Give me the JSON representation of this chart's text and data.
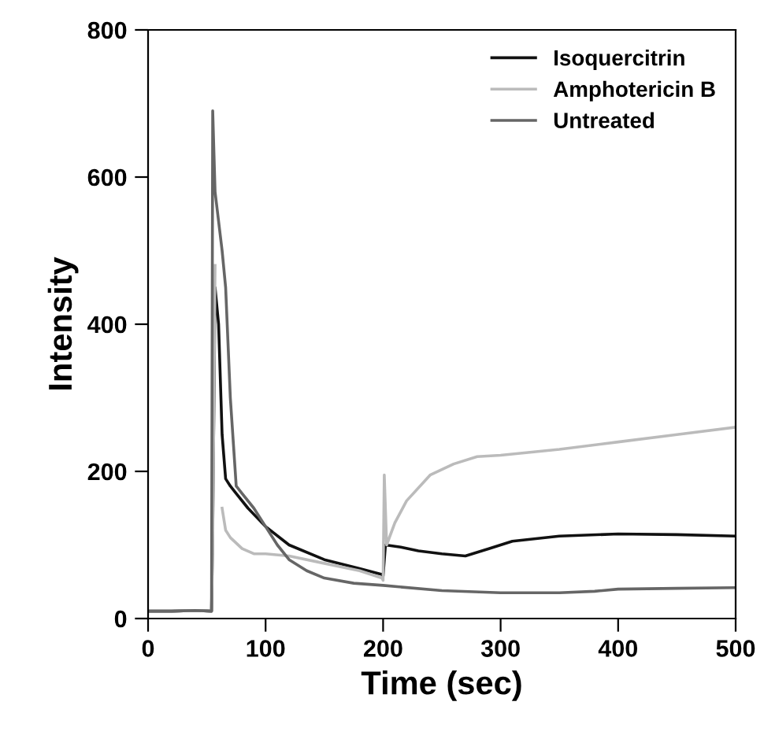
{
  "chart_data": {
    "type": "line",
    "xlabel": "Time (sec)",
    "ylabel": "Intensity",
    "xlim": [
      0,
      500
    ],
    "ylim": [
      0,
      800
    ],
    "xticks": [
      0,
      100,
      200,
      300,
      400,
      500
    ],
    "yticks": [
      0,
      200,
      400,
      600,
      800
    ],
    "grid": false,
    "legend": "top right",
    "marker": "none",
    "line_style": "solid",
    "series": [
      {
        "name": "Isoquercitrin",
        "color": "#111111",
        "x": [
          0,
          20,
          40,
          54,
          55,
          57,
          60,
          63,
          66,
          70,
          75,
          85,
          100,
          120,
          150,
          180,
          199,
          200,
          202,
          215,
          230,
          250,
          270,
          290,
          310,
          350,
          400,
          450,
          500
        ],
        "values": [
          10,
          10,
          11,
          10,
          120,
          450,
          400,
          250,
          190,
          180,
          170,
          150,
          125,
          100,
          80,
          68,
          60,
          58,
          100,
          97,
          92,
          88,
          85,
          95,
          105,
          112,
          115,
          114,
          112
        ]
      },
      {
        "name": "Amphotericin B",
        "color": "#bbbbbb",
        "x": [
          0,
          20,
          40,
          54,
          55,
          57,
          60,
          63,
          66,
          70,
          80,
          90,
          100,
          120,
          150,
          180,
          199,
          200,
          201,
          203,
          210,
          220,
          240,
          260,
          280,
          300,
          350,
          400,
          450,
          500
        ],
        "values": [
          10,
          10,
          11,
          10,
          100,
          480,
          null,
          150,
          120,
          110,
          95,
          88,
          88,
          85,
          75,
          65,
          55,
          52,
          195,
          100,
          130,
          160,
          195,
          210,
          220,
          222,
          230,
          240,
          250,
          260
        ]
      },
      {
        "name": "Untreated",
        "color": "#666666",
        "x": [
          0,
          20,
          40,
          54,
          55,
          57,
          60,
          63,
          66,
          70,
          75,
          80,
          90,
          100,
          110,
          120,
          135,
          150,
          175,
          200,
          250,
          300,
          350,
          380,
          400,
          450,
          500
        ],
        "values": [
          10,
          10,
          11,
          10,
          690,
          580,
          540,
          500,
          450,
          300,
          180,
          170,
          150,
          125,
          100,
          80,
          65,
          55,
          48,
          45,
          38,
          35,
          35,
          37,
          40,
          41,
          42
        ]
      }
    ]
  }
}
